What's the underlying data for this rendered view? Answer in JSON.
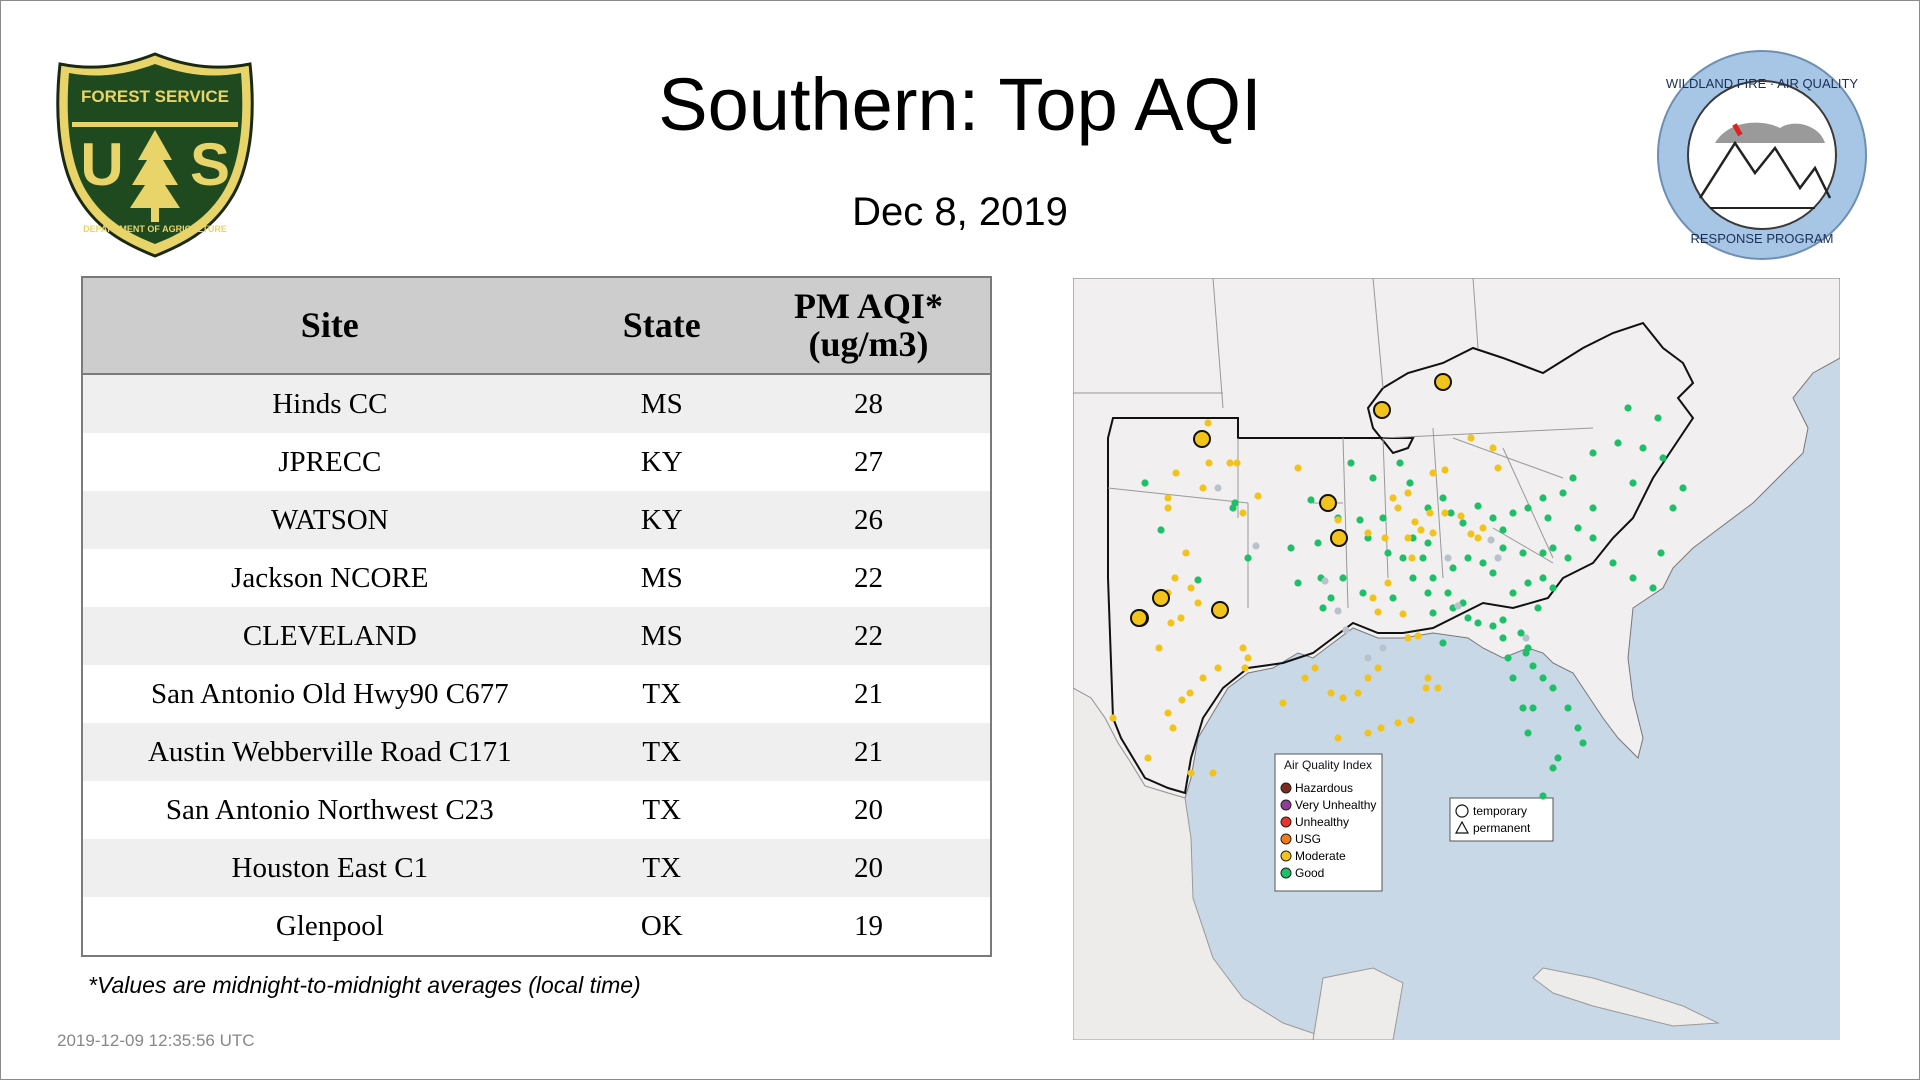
{
  "page": {
    "title": "Southern: Top AQI",
    "date": "Dec  8, 2019",
    "footnote": "*Values are midnight-to-midnight averages (local time)",
    "timestamp": "2019-12-09 12:35:56 UTC"
  },
  "logos": {
    "usfs": {
      "text_top": "FOREST SERVICE",
      "text_bottom": "DEPARTMENT OF AGRICULTURE",
      "letters": "US"
    },
    "wfaq": {
      "text_top": "WILDLAND FIRE · AIR QUALITY",
      "text_bottom": "RESPONSE PROGRAM"
    }
  },
  "table": {
    "headers": {
      "site": "Site",
      "state": "State",
      "aqi_line1": "PM AQI*",
      "aqi_line2": "(ug/m3)"
    },
    "rows": [
      {
        "site": "Hinds CC",
        "state": "MS",
        "aqi": "28"
      },
      {
        "site": "JPRECC",
        "state": "KY",
        "aqi": "27"
      },
      {
        "site": "WATSON",
        "state": "KY",
        "aqi": "26"
      },
      {
        "site": "Jackson NCORE",
        "state": "MS",
        "aqi": "22"
      },
      {
        "site": "CLEVELAND",
        "state": "MS",
        "aqi": "22"
      },
      {
        "site": "San Antonio Old Hwy90 C677",
        "state": "TX",
        "aqi": "21"
      },
      {
        "site": "Austin Webberville Road C171",
        "state": "TX",
        "aqi": "21"
      },
      {
        "site": "San Antonio Northwest C23",
        "state": "TX",
        "aqi": "20"
      },
      {
        "site": "Houston East C1",
        "state": "TX",
        "aqi": "20"
      },
      {
        "site": "Glenpool",
        "state": "OK",
        "aqi": "19"
      }
    ]
  },
  "map": {
    "legend": {
      "title": "Air Quality Index",
      "items": [
        {
          "label": "Hazardous",
          "color": "#7e2a1f"
        },
        {
          "label": "Very Unhealthy",
          "color": "#8f3f97"
        },
        {
          "label": "Unhealthy",
          "color": "#e8322c"
        },
        {
          "label": "USG",
          "color": "#f07c1e"
        },
        {
          "label": "Moderate",
          "color": "#f2c31a"
        },
        {
          "label": "Good",
          "color": "#1fbf6a"
        }
      ]
    },
    "shape_legend": {
      "temporary": "temporary",
      "permanent": "permanent"
    },
    "colors": {
      "water": "#c8d8e6",
      "land": "#f1efef",
      "good": "#1fbf6a",
      "moderate": "#f2c31a",
      "none": "#b8c2cc"
    }
  }
}
